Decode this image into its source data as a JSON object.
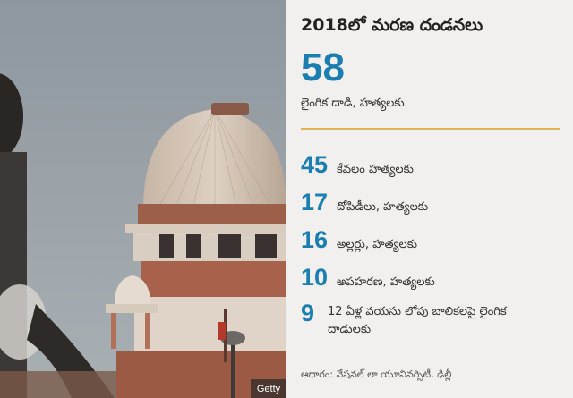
{
  "photo": {
    "credit": "Getty"
  },
  "panel": {
    "title": "2018లో మరణ దండనలు",
    "headline_number": "58",
    "headline_label": "లైంగిక దాడి, హత్యలకు",
    "rows": [
      {
        "number": "45",
        "label": "కేవలం హత్యలకు"
      },
      {
        "number": "17",
        "label": "దోపిడీలు, హత్యలకు"
      },
      {
        "number": "16",
        "label": "అల్లర్లు, హత్యలకు"
      },
      {
        "number": "10",
        "label": "అపహరణ, హత్యలకు"
      },
      {
        "number": "9",
        "label": "12 ఏళ్ల వయసు లోపు బాలికలపై లైంగిక దాడులకు"
      }
    ],
    "source": "ఆధారం: నేషనల్ లా యూనివర్సిటీ, ఢిల్లీ"
  },
  "colors": {
    "accent_number": "#1a7fb0",
    "divider": "#e1b35a",
    "panel_bg": "#f1f0ee"
  }
}
